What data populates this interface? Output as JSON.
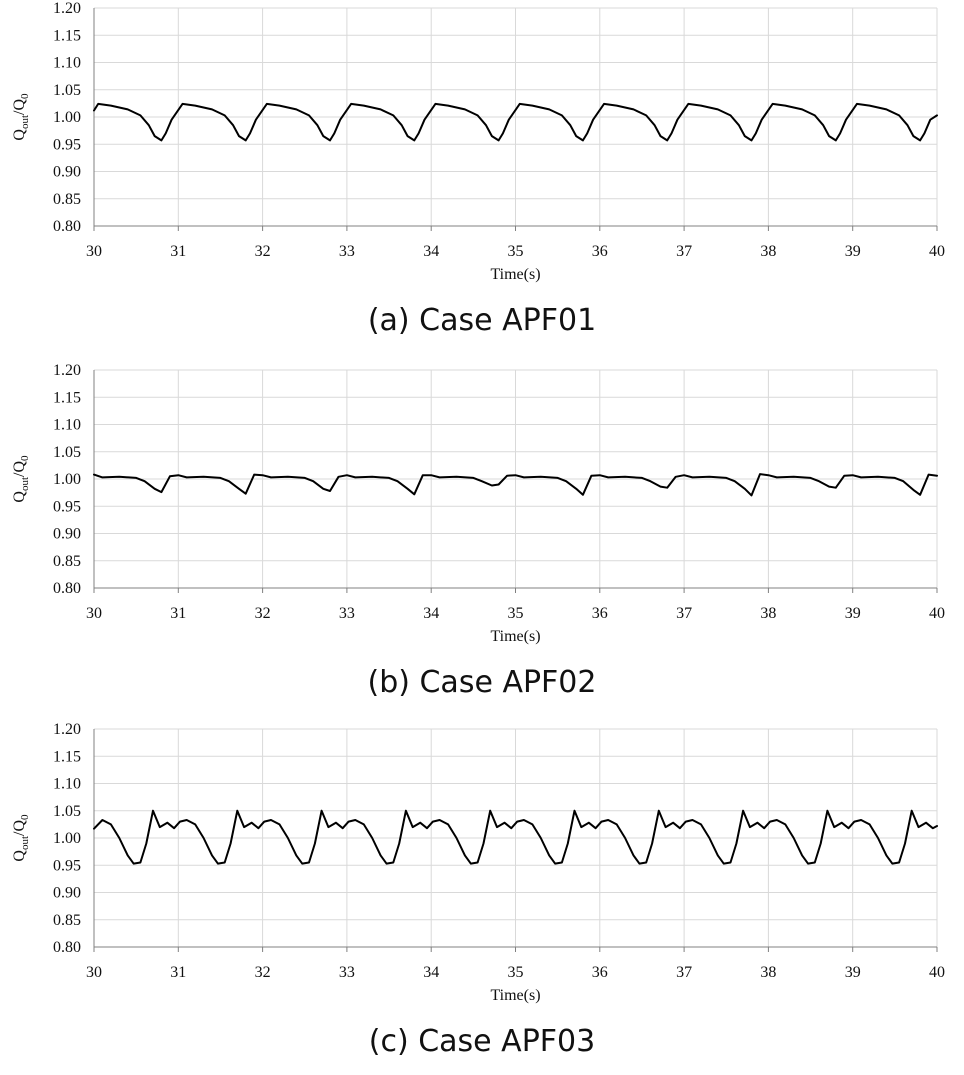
{
  "chart_data": [
    {
      "id": "a",
      "type": "line",
      "caption": "(a) Case APF01",
      "xlabel": "Time(s)",
      "ylabel": {
        "base1": "Q",
        "sub1": "out",
        "slash": "/",
        "base2": "Q",
        "sub2": "0"
      },
      "xlim": [
        30,
        40
      ],
      "ylim": [
        0.8,
        1.2
      ],
      "xticks": [
        "30",
        "31",
        "32",
        "33",
        "34",
        "35",
        "36",
        "37",
        "38",
        "39",
        "40"
      ],
      "yticks": [
        "0.80",
        "0.85",
        "0.90",
        "0.95",
        "1.00",
        "1.05",
        "1.10",
        "1.15",
        "1.20"
      ],
      "grid": true,
      "color": "#000000",
      "x": [
        30.0,
        30.05,
        30.2,
        30.4,
        30.55,
        30.65,
        30.72,
        30.8,
        30.85,
        30.92,
        31.05,
        31.2,
        31.4,
        31.55,
        31.65,
        31.72,
        31.8,
        31.85,
        31.92,
        32.05,
        32.2,
        32.4,
        32.55,
        32.65,
        32.72,
        32.8,
        32.85,
        32.92,
        33.05,
        33.2,
        33.4,
        33.55,
        33.65,
        33.72,
        33.8,
        33.85,
        33.92,
        34.05,
        34.2,
        34.4,
        34.55,
        34.65,
        34.72,
        34.8,
        34.85,
        34.92,
        35.05,
        35.2,
        35.4,
        35.55,
        35.65,
        35.72,
        35.8,
        35.85,
        35.92,
        36.05,
        36.2,
        36.4,
        36.55,
        36.65,
        36.72,
        36.8,
        36.85,
        36.92,
        37.05,
        37.2,
        37.4,
        37.55,
        37.65,
        37.72,
        37.8,
        37.85,
        37.92,
        38.05,
        38.2,
        38.4,
        38.55,
        38.65,
        38.72,
        38.8,
        38.85,
        38.92,
        39.05,
        39.2,
        39.4,
        39.55,
        39.65,
        39.72,
        39.8,
        39.85,
        39.92,
        40.0
      ],
      "y": [
        1.012,
        1.024,
        1.021,
        1.014,
        1.003,
        0.985,
        0.965,
        0.957,
        0.97,
        0.995,
        1.024,
        1.021,
        1.014,
        1.003,
        0.985,
        0.965,
        0.957,
        0.97,
        0.995,
        1.024,
        1.021,
        1.014,
        1.003,
        0.985,
        0.965,
        0.957,
        0.97,
        0.995,
        1.024,
        1.021,
        1.014,
        1.003,
        0.985,
        0.965,
        0.957,
        0.97,
        0.995,
        1.024,
        1.021,
        1.014,
        1.003,
        0.985,
        0.965,
        0.957,
        0.97,
        0.995,
        1.024,
        1.021,
        1.014,
        1.003,
        0.985,
        0.965,
        0.957,
        0.97,
        0.995,
        1.024,
        1.021,
        1.014,
        1.003,
        0.985,
        0.965,
        0.957,
        0.97,
        0.995,
        1.024,
        1.021,
        1.014,
        1.003,
        0.985,
        0.965,
        0.957,
        0.97,
        0.995,
        1.024,
        1.021,
        1.014,
        1.003,
        0.985,
        0.965,
        0.957,
        0.97,
        0.995,
        1.024,
        1.021,
        1.014,
        1.003,
        0.985,
        0.965,
        0.957,
        0.97,
        0.995,
        1.003
      ]
    },
    {
      "id": "b",
      "type": "line",
      "caption": "(b) Case APF02",
      "xlabel": "Time(s)",
      "ylabel": {
        "base1": "Q",
        "sub1": "out",
        "slash": "/",
        "base2": "Q",
        "sub2": "0"
      },
      "xlim": [
        30,
        40
      ],
      "ylim": [
        0.8,
        1.2
      ],
      "xticks": [
        "30",
        "31",
        "32",
        "33",
        "34",
        "35",
        "36",
        "37",
        "38",
        "39",
        "40"
      ],
      "yticks": [
        "0.80",
        "0.85",
        "0.90",
        "0.95",
        "1.00",
        "1.05",
        "1.10",
        "1.15",
        "1.20"
      ],
      "grid": true,
      "color": "#000000",
      "x": [
        30.0,
        30.1,
        30.3,
        30.5,
        30.6,
        30.72,
        30.8,
        30.9,
        31.0,
        31.1,
        31.3,
        31.5,
        31.6,
        31.72,
        31.8,
        31.9,
        32.0,
        32.1,
        32.3,
        32.5,
        32.6,
        32.72,
        32.8,
        32.9,
        33.0,
        33.1,
        33.3,
        33.5,
        33.6,
        33.72,
        33.8,
        33.9,
        34.0,
        34.1,
        34.3,
        34.5,
        34.6,
        34.72,
        34.8,
        34.9,
        35.0,
        35.1,
        35.3,
        35.5,
        35.6,
        35.72,
        35.8,
        35.9,
        36.0,
        36.1,
        36.3,
        36.5,
        36.6,
        36.72,
        36.8,
        36.9,
        37.0,
        37.1,
        37.3,
        37.5,
        37.6,
        37.72,
        37.8,
        37.9,
        38.0,
        38.1,
        38.3,
        38.5,
        38.6,
        38.72,
        38.8,
        38.9,
        39.0,
        39.1,
        39.3,
        39.5,
        39.6,
        39.72,
        39.8,
        39.9,
        40.0
      ],
      "y": [
        1.008,
        1.003,
        1.004,
        1.002,
        0.996,
        0.982,
        0.976,
        1.005,
        1.007,
        1.003,
        1.004,
        1.002,
        0.996,
        0.982,
        0.973,
        1.008,
        1.007,
        1.003,
        1.004,
        1.002,
        0.996,
        0.982,
        0.978,
        1.004,
        1.007,
        1.003,
        1.004,
        1.002,
        0.996,
        0.982,
        0.972,
        1.007,
        1.007,
        1.003,
        1.004,
        1.002,
        0.996,
        0.988,
        0.99,
        1.006,
        1.007,
        1.003,
        1.004,
        1.002,
        0.996,
        0.982,
        0.971,
        1.006,
        1.007,
        1.003,
        1.004,
        1.002,
        0.996,
        0.986,
        0.984,
        1.004,
        1.007,
        1.003,
        1.004,
        1.002,
        0.996,
        0.982,
        0.97,
        1.009,
        1.007,
        1.003,
        1.004,
        1.002,
        0.996,
        0.986,
        0.984,
        1.006,
        1.007,
        1.003,
        1.004,
        1.002,
        0.996,
        0.98,
        0.971,
        1.008,
        1.006
      ]
    },
    {
      "id": "c",
      "type": "line",
      "caption": "(c) Case APF03",
      "xlabel": "Time(s)",
      "ylabel": {
        "base1": "Q",
        "sub1": "out",
        "slash": "/",
        "base2": "Q",
        "sub2": "0"
      },
      "xlim": [
        30,
        40
      ],
      "ylim": [
        0.8,
        1.2
      ],
      "xticks": [
        "30",
        "31",
        "32",
        "33",
        "34",
        "35",
        "36",
        "37",
        "38",
        "39",
        "40"
      ],
      "yticks": [
        "0.80",
        "0.85",
        "0.90",
        "0.95",
        "1.00",
        "1.05",
        "1.10",
        "1.15",
        "1.20"
      ],
      "grid": true,
      "color": "#000000",
      "x": [
        30.0,
        30.1,
        30.2,
        30.3,
        30.4,
        30.47,
        30.55,
        30.62,
        30.7,
        30.78,
        30.87,
        30.95,
        31.02,
        31.1,
        31.2,
        31.3,
        31.4,
        31.47,
        31.55,
        31.62,
        31.7,
        31.78,
        31.87,
        31.95,
        32.02,
        32.1,
        32.2,
        32.3,
        32.4,
        32.47,
        32.55,
        32.62,
        32.7,
        32.78,
        32.87,
        32.95,
        33.02,
        33.1,
        33.2,
        33.3,
        33.4,
        33.47,
        33.55,
        33.62,
        33.7,
        33.78,
        33.87,
        33.95,
        34.02,
        34.1,
        34.2,
        34.3,
        34.4,
        34.47,
        34.55,
        34.62,
        34.7,
        34.78,
        34.87,
        34.95,
        35.02,
        35.1,
        35.2,
        35.3,
        35.4,
        35.47,
        35.55,
        35.62,
        35.7,
        35.78,
        35.87,
        35.95,
        36.02,
        36.1,
        36.2,
        36.3,
        36.4,
        36.47,
        36.55,
        36.62,
        36.7,
        36.78,
        36.87,
        36.95,
        37.02,
        37.1,
        37.2,
        37.3,
        37.4,
        37.47,
        37.55,
        37.62,
        37.7,
        37.78,
        37.87,
        37.95,
        38.02,
        38.1,
        38.2,
        38.3,
        38.4,
        38.47,
        38.55,
        38.62,
        38.7,
        38.78,
        38.87,
        38.95,
        39.02,
        39.1,
        39.2,
        39.3,
        39.4,
        39.47,
        39.55,
        39.62,
        39.7,
        39.78,
        39.87,
        39.95,
        40.0
      ],
      "y": [
        1.017,
        1.033,
        1.025,
        1.0,
        0.968,
        0.953,
        0.955,
        0.99,
        1.05,
        1.02,
        1.028,
        1.018,
        1.03,
        1.033,
        1.025,
        1.0,
        0.968,
        0.953,
        0.955,
        0.99,
        1.05,
        1.02,
        1.028,
        1.018,
        1.03,
        1.033,
        1.025,
        1.0,
        0.968,
        0.953,
        0.955,
        0.99,
        1.05,
        1.02,
        1.028,
        1.018,
        1.03,
        1.033,
        1.025,
        1.0,
        0.968,
        0.953,
        0.955,
        0.99,
        1.05,
        1.02,
        1.028,
        1.018,
        1.03,
        1.033,
        1.025,
        1.0,
        0.968,
        0.953,
        0.955,
        0.99,
        1.05,
        1.02,
        1.028,
        1.018,
        1.03,
        1.033,
        1.025,
        1.0,
        0.968,
        0.953,
        0.955,
        0.99,
        1.05,
        1.02,
        1.028,
        1.018,
        1.03,
        1.033,
        1.025,
        1.0,
        0.968,
        0.953,
        0.955,
        0.99,
        1.05,
        1.02,
        1.028,
        1.018,
        1.03,
        1.033,
        1.025,
        1.0,
        0.968,
        0.953,
        0.955,
        0.99,
        1.05,
        1.02,
        1.028,
        1.018,
        1.03,
        1.033,
        1.025,
        1.0,
        0.968,
        0.953,
        0.955,
        0.99,
        1.05,
        1.02,
        1.028,
        1.018,
        1.03,
        1.033,
        1.025,
        1.0,
        0.968,
        0.953,
        0.955,
        0.99,
        1.05,
        1.02,
        1.028,
        1.018,
        1.022
      ]
    }
  ]
}
